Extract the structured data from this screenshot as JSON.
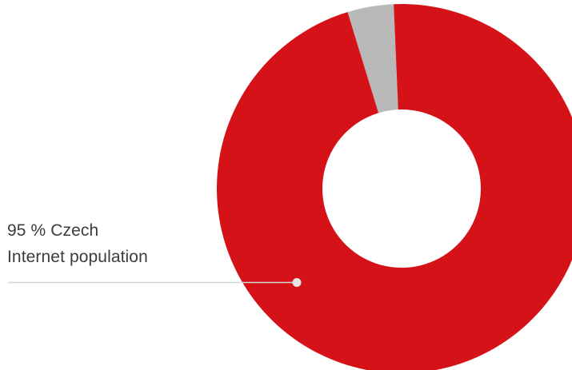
{
  "chart_data": {
    "type": "pie",
    "style": "donut",
    "slices": [
      {
        "label": "95 % Czech Internet population",
        "value": 95,
        "color": "#d41217"
      },
      {
        "label": "",
        "value": 4,
        "color": "#b9b9b9"
      }
    ],
    "annotation": {
      "line1": "95 % Czech",
      "line2": "Internet population"
    },
    "legend": "none"
  },
  "colors": {
    "primary": "#d41217",
    "secondary": "#b9b9b9",
    "callout_line": "#d6d6d6",
    "callout_dot": "#e6e6e6",
    "text": "#3c3c3c"
  }
}
